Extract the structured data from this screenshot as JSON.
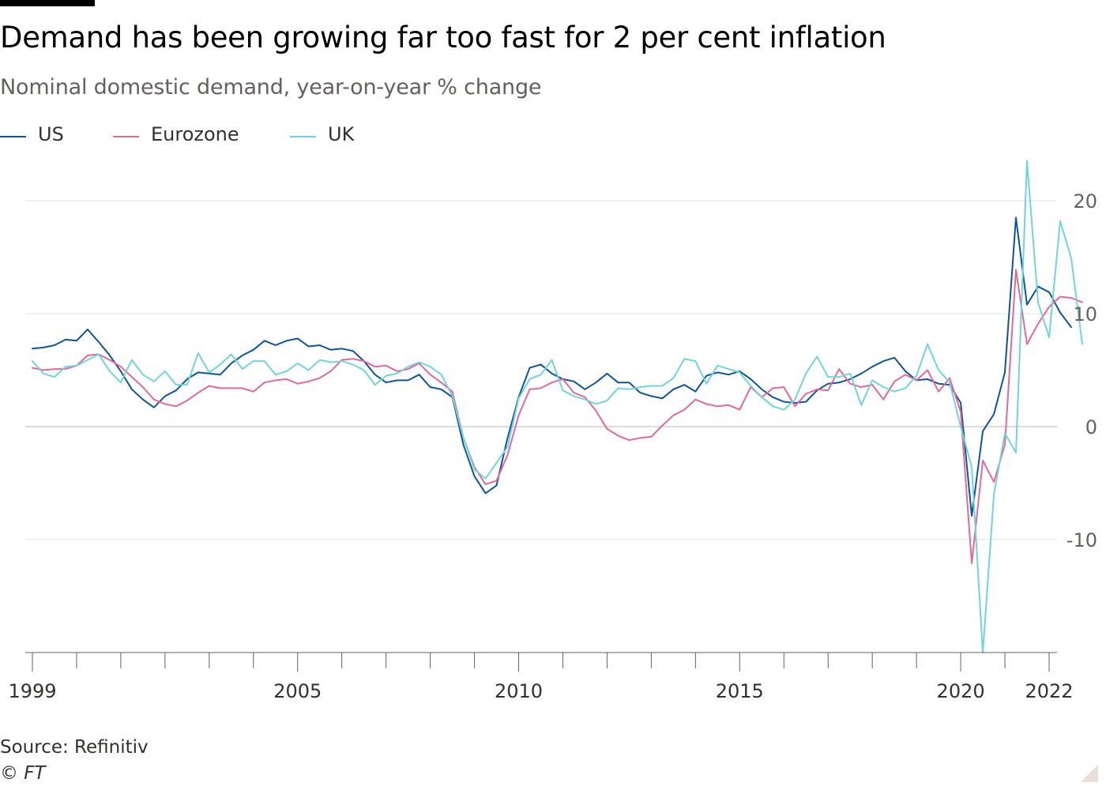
{
  "header": {
    "title": "Demand has been growing far too fast for 2 per cent inflation",
    "subtitle": "Nominal domestic demand, year-on-year % change"
  },
  "legend": [
    {
      "name": "US",
      "color": "#0f5499"
    },
    {
      "name": "Eurozone",
      "color": "#e3699a"
    },
    {
      "name": "UK",
      "color": "#6fd4dd"
    }
  ],
  "footer": {
    "source": "Source: Refinitiv",
    "copyright": "© FT"
  },
  "chart_data": {
    "type": "line",
    "title": "Demand has been growing far too fast for 2 per cent inflation",
    "subtitle": "Nominal domestic demand, year-on-year % change",
    "xlabel": "",
    "ylabel": "",
    "xlim": [
      1999,
      2022
    ],
    "ylim": [
      -20,
      24
    ],
    "y_ticks": [
      20,
      10,
      0,
      -10
    ],
    "y_tick_labels": [
      "20",
      "10",
      "0",
      "-10"
    ],
    "x_ticks": [
      1999,
      2005,
      2010,
      2015,
      2020,
      2022
    ],
    "x_tick_labels": [
      "1999",
      "2005",
      "2010",
      "2015",
      "2020",
      "2022"
    ],
    "grid": true,
    "legend_position": "top-left",
    "y_axis_side": "right",
    "series": [
      {
        "name": "US",
        "color": "#0f5499",
        "start": 1999.0,
        "step": 0.25,
        "values": [
          6.9,
          7.0,
          7.2,
          7.7,
          7.6,
          8.6,
          7.5,
          6.3,
          4.9,
          3.3,
          2.4,
          1.7,
          2.7,
          3.2,
          4.2,
          4.8,
          4.7,
          4.6,
          5.6,
          6.3,
          6.8,
          7.6,
          7.2,
          7.6,
          7.8,
          7.1,
          7.2,
          6.8,
          6.9,
          6.7,
          5.8,
          4.6,
          3.9,
          4.1,
          4.1,
          4.6,
          3.5,
          3.3,
          2.6,
          -1.6,
          -4.4,
          -5.9,
          -5.2,
          -1.0,
          2.6,
          5.2,
          5.5,
          4.7,
          4.2,
          4.0,
          3.3,
          3.9,
          4.7,
          3.9,
          3.9,
          3.0,
          2.7,
          2.5,
          3.3,
          3.7,
          3.1,
          4.5,
          4.8,
          4.6,
          4.9,
          4.2,
          3.3,
          2.6,
          2.2,
          2.1,
          2.2,
          3.2,
          3.8,
          3.9,
          4.2,
          4.7,
          5.3,
          5.8,
          6.1,
          4.9,
          4.1,
          4.2,
          3.8,
          3.7,
          2.1,
          -7.9,
          -0.4,
          1.1,
          4.8,
          18.5,
          10.8,
          12.4,
          11.9,
          10.1,
          8.8
        ]
      },
      {
        "name": "Eurozone",
        "color": "#e3699a",
        "start": 1999.0,
        "step": 0.25,
        "values": [
          5.2,
          5.0,
          5.1,
          5.1,
          5.4,
          6.3,
          6.4,
          5.9,
          5.3,
          4.4,
          3.5,
          2.4,
          2.0,
          1.8,
          2.3,
          3.0,
          3.6,
          3.4,
          3.4,
          3.4,
          3.1,
          3.9,
          4.1,
          4.2,
          3.8,
          4.0,
          4.3,
          4.9,
          5.9,
          6.0,
          5.8,
          5.3,
          5.4,
          4.9,
          5.1,
          5.6,
          4.6,
          3.9,
          3.1,
          -1.0,
          -3.6,
          -5.1,
          -4.8,
          -2.5,
          1.0,
          3.3,
          3.4,
          3.9,
          4.2,
          3.0,
          2.6,
          1.4,
          -0.2,
          -0.8,
          -1.2,
          -1.0,
          -0.9,
          0.1,
          1.0,
          1.5,
          2.4,
          2.0,
          1.8,
          1.9,
          1.5,
          3.5,
          2.6,
          3.4,
          3.5,
          1.8,
          2.9,
          3.3,
          3.2,
          5.1,
          3.8,
          3.5,
          3.7,
          2.4,
          4.0,
          4.6,
          4.1,
          5.0,
          3.1,
          4.3,
          1.3,
          -12.1,
          -3.0,
          -4.9,
          -1.6,
          13.9,
          7.3,
          9.1,
          10.6,
          11.5,
          11.4,
          11.0
        ]
      },
      {
        "name": "UK",
        "color": "#6fd4dd",
        "start": 1999.0,
        "step": 0.25,
        "values": [
          5.8,
          4.7,
          4.4,
          5.3,
          5.4,
          5.9,
          6.4,
          4.9,
          3.9,
          5.9,
          4.6,
          4.0,
          4.9,
          3.7,
          3.7,
          6.5,
          4.8,
          5.5,
          6.4,
          5.1,
          5.8,
          5.8,
          4.6,
          4.9,
          5.6,
          5.0,
          5.9,
          5.7,
          5.8,
          5.5,
          5.0,
          3.7,
          4.5,
          4.7,
          5.3,
          5.7,
          5.3,
          4.6,
          2.7,
          -1.0,
          -3.8,
          -4.6,
          -3.2,
          -1.8,
          2.5,
          4.2,
          4.6,
          5.9,
          3.2,
          2.7,
          2.4,
          2.0,
          2.3,
          3.4,
          3.3,
          3.5,
          3.6,
          3.6,
          4.3,
          6.0,
          5.8,
          3.8,
          5.4,
          5.1,
          4.8,
          3.6,
          2.6,
          1.8,
          1.5,
          2.4,
          4.7,
          6.2,
          4.4,
          4.4,
          4.7,
          1.9,
          4.1,
          3.5,
          3.1,
          3.4,
          4.5,
          7.3,
          5.0,
          3.9,
          0.0,
          -3.6,
          -20.0,
          -6.0,
          -0.6,
          -2.3,
          23.5,
          11.0,
          7.9,
          18.2,
          14.9,
          7.3
        ]
      }
    ]
  }
}
